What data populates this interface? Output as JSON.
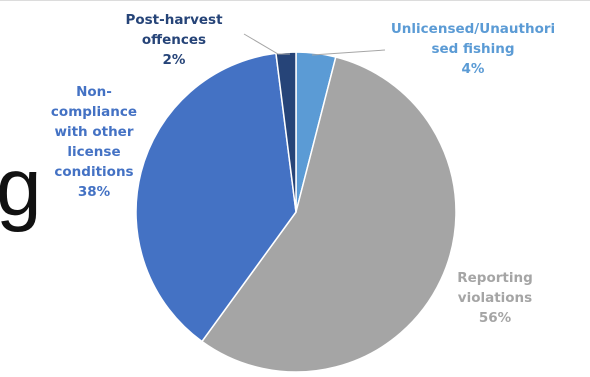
{
  "fragment_text": "g",
  "chart_data": {
    "type": "pie",
    "slices": [
      {
        "label_lines": [
          "Unlicensed/Unauthori",
          "sed fishing"
        ],
        "pct_text": "4%",
        "value": 4,
        "color": "#5b9bd5",
        "label_color": "#5b9bd5"
      },
      {
        "label_lines": [
          "Reporting",
          "violations"
        ],
        "pct_text": "56%",
        "value": 56,
        "color": "#a5a5a5",
        "label_color": "#a5a5a5"
      },
      {
        "label_lines": [
          "Non-",
          "compliance",
          "with other",
          "license",
          "conditions"
        ],
        "pct_text": "38%",
        "value": 38,
        "color": "#4472c4",
        "label_color": "#4472c4"
      },
      {
        "label_lines": [
          "Post-harvest",
          "offences"
        ],
        "pct_text": "2%",
        "value": 2,
        "color": "#264478",
        "label_color": "#264478"
      }
    ]
  }
}
